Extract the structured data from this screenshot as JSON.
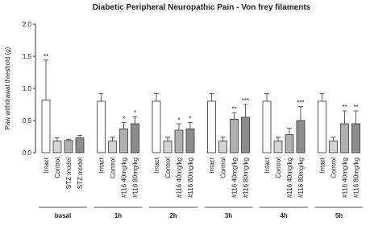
{
  "chart_data": {
    "type": "grouped-bar",
    "title": "Diabetic Peripheral Neuropathic Pain -  Von frey filaments",
    "y_label": "Paw withdrawal threshold (g)",
    "ylim": [
      0,
      2
    ],
    "yticks": [
      {
        "value": 0,
        "label": "0.0"
      },
      {
        "value": 0.5,
        "label": "0.5"
      },
      {
        "value": 1,
        "label": "1.0"
      },
      {
        "value": 1.5,
        "label": "1.5"
      },
      {
        "value": 2,
        "label": "2.0"
      }
    ],
    "colors": [
      "#ffffff",
      "#d4d4d4",
      "#b0b0b0",
      "#8c8c8c"
    ],
    "groups": [
      {
        "name": "basal",
        "categories": [
          "Intact",
          "Control",
          "STZ model",
          "STZ model"
        ],
        "values": [
          0.82,
          0.18,
          0.19,
          0.23
        ],
        "errors": [
          0.62,
          0.05,
          0.02,
          0.04
        ],
        "annotations": [
          "**",
          null,
          null,
          null
        ]
      },
      {
        "name": "1h",
        "categories": [
          "Intact",
          "Control",
          "#116 40mg/kg",
          "#116 80mg/kg"
        ],
        "values": [
          0.8,
          0.18,
          0.37,
          0.45
        ],
        "errors": [
          0.12,
          0.06,
          0.1,
          0.11
        ],
        "annotations": [
          null,
          null,
          "*",
          "*"
        ]
      },
      {
        "name": "2h",
        "categories": [
          "Intact",
          "Control",
          "#116 40mg/kg",
          "#116 80mg/kg"
        ],
        "values": [
          0.8,
          0.18,
          0.35,
          0.37
        ],
        "errors": [
          0.12,
          0.06,
          0.1,
          0.1
        ],
        "annotations": [
          null,
          null,
          "*",
          "*"
        ]
      },
      {
        "name": "3h",
        "categories": [
          "Intact",
          "Control",
          "#116 40mg/kg",
          "#116 80mg/kg"
        ],
        "values": [
          0.8,
          0.18,
          0.52,
          0.55
        ],
        "errors": [
          0.12,
          0.06,
          0.1,
          0.2
        ],
        "annotations": [
          null,
          null,
          "**",
          "***"
        ]
      },
      {
        "name": "4h",
        "categories": [
          "Intact",
          "Control",
          "#116 40mg/kg",
          "#116 80mg/kg"
        ],
        "values": [
          0.8,
          0.18,
          0.28,
          0.5
        ],
        "errors": [
          0.12,
          0.06,
          0.1,
          0.22
        ],
        "annotations": [
          null,
          null,
          null,
          "***"
        ]
      },
      {
        "name": "5h",
        "categories": [
          "Intact",
          "Control",
          "#116 40mg/kg",
          "#116 80mg/kg"
        ],
        "values": [
          0.8,
          0.18,
          0.45,
          0.45
        ],
        "errors": [
          0.12,
          0.06,
          0.2,
          0.2
        ],
        "annotations": [
          null,
          null,
          "**",
          "**"
        ]
      }
    ]
  }
}
